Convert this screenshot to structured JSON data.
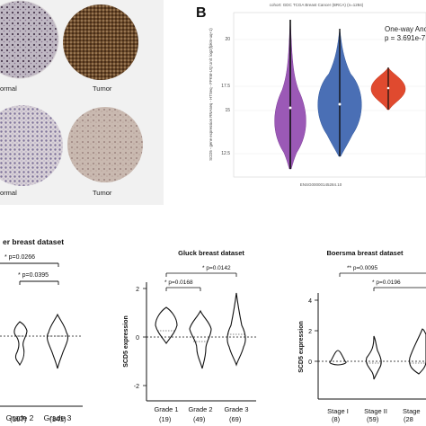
{
  "panelA": {
    "labels": [
      "ormal",
      "Tumor",
      "ormal",
      "Tumor"
    ]
  },
  "panelB": {
    "letter": "B",
    "cohort": "cohort: GDC TCGA Breast Cancer (BRCA) (n=1284)",
    "ylabel": "SCD5 - gene expression RNAseq - HTSeq - FPKM-UQ Unit: log2(fpkm-uq+1)",
    "xlabel": "ENSG00000145284.10",
    "annotation1": "One-way Ano",
    "annotation2": "p = 3.691e-7"
  },
  "chart_data": [
    {
      "type": "violin",
      "title": "",
      "ylabel": "SCD5 - gene expression RNAseq - HTSeq - FPKM-UQ Unit: log2(fpkm-uq+1)",
      "xlabel": "ENSG00000145284.10",
      "ylim": [
        11,
        21
      ],
      "yticks": [
        12.5,
        15,
        17.5,
        20
      ],
      "series": [
        {
          "color": "#9b59b6",
          "median": 15.3,
          "min": 11,
          "max": 21
        },
        {
          "color": "#4a6fb5",
          "median": 15.8,
          "min": 12.8,
          "max": 20.2
        },
        {
          "color": "#e04a2f",
          "median": 16.6,
          "min": 15.2,
          "max": 18
        }
      ],
      "annotation": "One-way Ano p = 3.691e-7"
    },
    {
      "type": "violin",
      "title": "er breast dataset",
      "categories": [
        "Grade 2",
        "Grade 3"
      ],
      "counts": [
        "(107)",
        "(141)"
      ],
      "comparisons": [
        "* p=0.0266",
        "* p=0.0395"
      ]
    },
    {
      "type": "violin",
      "title": "Gluck breast dataset",
      "ylabel": "SCD5 expression",
      "yticks": [
        -2,
        0,
        2
      ],
      "categories": [
        "Grade 1",
        "Grade 2",
        "Grade 3"
      ],
      "counts": [
        "(19)",
        "(49)",
        "(69)"
      ],
      "comparisons": [
        "* p=0.0168",
        "* p=0.0142"
      ]
    },
    {
      "type": "violin",
      "title": "Boersma breast dataset",
      "ylabel": "SCD5 expression",
      "yticks": [
        0,
        2,
        4
      ],
      "categories": [
        "Stage I",
        "Stage II",
        "Stage"
      ],
      "counts": [
        "(8)",
        "(59)",
        "(28"
      ],
      "comparisons": [
        "** p=0.0095",
        "* p=0.0196"
      ]
    }
  ],
  "left_chart": {
    "title": "er breast dataset",
    "cat1": "Grade 2",
    "cat2": "Grade 3",
    "n1": "(107)",
    "n2": "(141)",
    "p1": "* p=0.0266",
    "p2": "* p=0.0395"
  },
  "gluck": {
    "title": "Gluck breast dataset",
    "ylabel": "SCD5 expression",
    "yt1": "2",
    "yt2": "0",
    "yt3": "-2",
    "cat1": "Grade 1",
    "cat2": "Grade 2",
    "cat3": "Grade 3",
    "n1": "(19)",
    "n2": "(49)",
    "n3": "(69)",
    "p1": "* p=0.0168",
    "p2": "* p=0.0142"
  },
  "boersma": {
    "title": "Boersma breast dataset",
    "ylabel": "SCD5 expression",
    "yt1": "4",
    "yt2": "2",
    "yt3": "0",
    "cat1": "Stage I",
    "cat2": "Stage II",
    "cat3": "Stage",
    "n1": "(8)",
    "n2": "(59)",
    "n3": "(28",
    "p1": "** p=0.0095",
    "p2": "* p=0.0196"
  },
  "panelB_ticks": {
    "t1": "20",
    "t2": "17.5",
    "t3": "15",
    "t4": "12.5"
  }
}
